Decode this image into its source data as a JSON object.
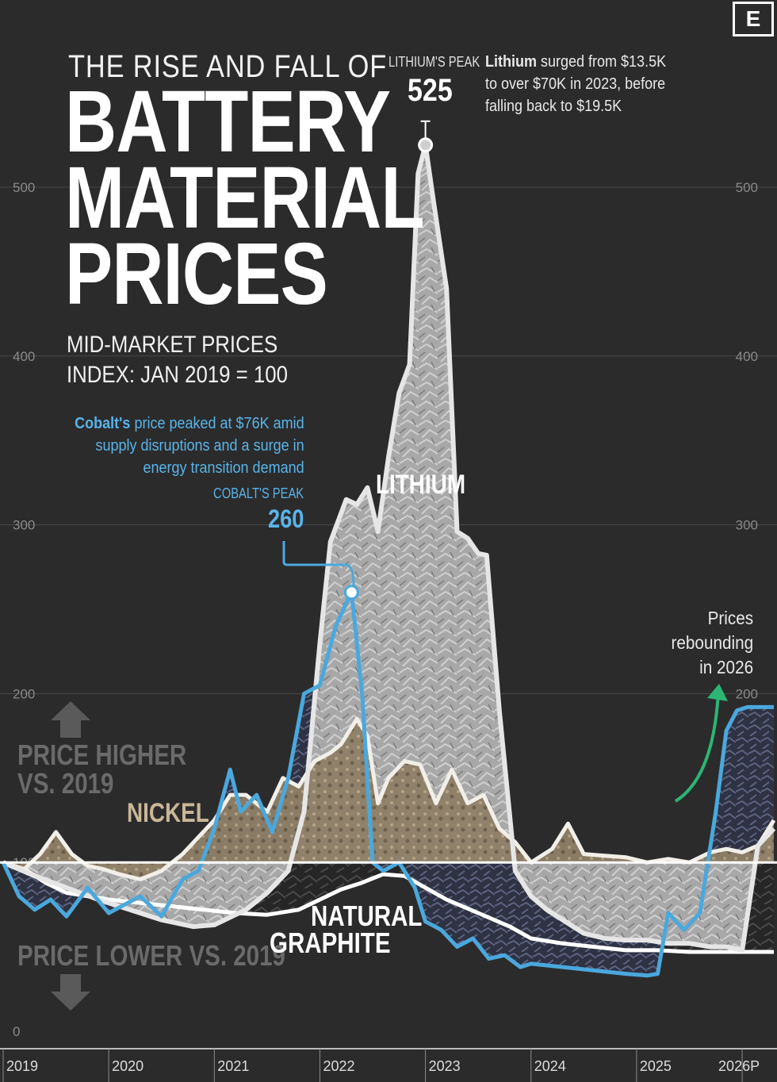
{
  "title_top": "THE RISE AND FALL OF",
  "title_lines": [
    "BATTERY",
    "MATERIAL",
    "PRICES"
  ],
  "subtitle_1": "MID-MARKET PRICES",
  "subtitle_2": "INDEX: JAN 2019 = 100",
  "logo": "E",
  "lithium_peak": {
    "label": "LITHIUM'S PEAK",
    "value": "525"
  },
  "lithium_note": {
    "bold": "Lithium",
    "text_1": " surged from $13.5K",
    "text_2": "to over $70K in 2023, before",
    "text_3": "falling back to $19.5K"
  },
  "cobalt_note": {
    "bold": "Cobalt's",
    "text_1": " price peaked at $76K amid",
    "text_2": "supply disruptions and a surge in",
    "text_3": "energy transition demand"
  },
  "cobalt_peak": {
    "label": "COBALT'S PEAK",
    "value": "260"
  },
  "rebound_note": [
    "Prices",
    "rebounding",
    "in 2026"
  ],
  "price_higher": [
    "PRICE HIGHER",
    "VS. 2019"
  ],
  "price_lower": "PRICE LOWER VS. 2019",
  "series_labels": {
    "lithium": "LITHIUM",
    "nickel": "NICKEL",
    "graphite_1": "NATURAL",
    "graphite_2": "GRAPHITE"
  },
  "colors": {
    "background": "#2b2b2c",
    "cobalt": "#4aa8dd",
    "lithium_fill": "#9e9e9e",
    "nickel_fill": "#8a7a63",
    "graphite_fill": "#3a3a3a",
    "arrow_green": "#2bb673"
  },
  "chart_data": {
    "type": "area",
    "ylim": [
      0,
      525
    ],
    "yticks": [
      0,
      100,
      200,
      300,
      400,
      500
    ],
    "ytick_labels_right": [
      "100",
      "200",
      "300",
      "400",
      "500"
    ],
    "xlim": [
      2019,
      2026.3
    ],
    "xticks": [
      2019,
      2020,
      2021,
      2022,
      2023,
      2024,
      2025,
      2026
    ],
    "xtick_labels": [
      "2019",
      "2020",
      "2021",
      "2022",
      "2023",
      "2024",
      "2025",
      "2026P"
    ],
    "series": [
      {
        "name": "LITHIUM",
        "x": [
          2019.0,
          2019.3,
          2019.6,
          2019.9,
          2020.2,
          2020.5,
          2020.8,
          2021.0,
          2021.3,
          2021.5,
          2021.7,
          2021.85,
          2022.0,
          2022.1,
          2022.25,
          2022.35,
          2022.45,
          2022.55,
          2022.65,
          2022.75,
          2022.85,
          2022.93,
          2023.0,
          2023.08,
          2023.2,
          2023.3,
          2023.4,
          2023.5,
          2023.58,
          2023.7,
          2023.85,
          2024.0,
          2024.15,
          2024.3,
          2024.5,
          2024.7,
          2024.9,
          2025.1,
          2025.3,
          2025.5,
          2025.7,
          2025.85,
          2026.0,
          2026.15,
          2026.3
        ],
        "y": [
          100,
          92,
          85,
          78,
          72,
          66,
          62,
          63,
          72,
          82,
          95,
          130,
          230,
          290,
          315,
          312,
          322,
          296,
          340,
          378,
          395,
          508,
          525,
          490,
          440,
          296,
          292,
          283,
          282,
          190,
          95,
          80,
          72,
          66,
          58,
          55,
          54,
          54,
          52,
          52,
          50,
          50,
          48,
          110,
          120
        ]
      },
      {
        "name": "COBALT",
        "x": [
          2019.0,
          2019.15,
          2019.3,
          2019.45,
          2019.6,
          2019.8,
          2020.0,
          2020.15,
          2020.3,
          2020.5,
          2020.7,
          2020.85,
          2021.0,
          2021.15,
          2021.25,
          2021.4,
          2021.55,
          2021.7,
          2021.85,
          2022.0,
          2022.15,
          2022.3,
          2022.4,
          2022.5,
          2022.6,
          2022.75,
          2022.9,
          2023.0,
          2023.15,
          2023.3,
          2023.45,
          2023.6,
          2023.75,
          2023.9,
          2024.0,
          2024.3,
          2024.6,
          2024.9,
          2025.1,
          2025.2,
          2025.3,
          2025.45,
          2025.6,
          2025.75,
          2025.85,
          2025.95,
          2026.05,
          2026.2,
          2026.3
        ],
        "y": [
          100,
          80,
          72,
          78,
          68,
          85,
          70,
          75,
          80,
          68,
          90,
          95,
          120,
          155,
          130,
          140,
          118,
          150,
          200,
          205,
          240,
          260,
          200,
          100,
          95,
          100,
          85,
          65,
          60,
          50,
          55,
          43,
          45,
          38,
          40,
          38,
          36,
          34,
          33,
          34,
          70,
          60,
          70,
          130,
          178,
          190,
          192,
          192,
          192
        ]
      },
      {
        "name": "NICKEL",
        "x": [
          2019.0,
          2019.2,
          2019.35,
          2019.5,
          2019.65,
          2019.8,
          2019.95,
          2020.1,
          2020.3,
          2020.5,
          2020.7,
          2020.85,
          2021.0,
          2021.15,
          2021.3,
          2021.5,
          2021.65,
          2021.8,
          2021.95,
          2022.1,
          2022.2,
          2022.35,
          2022.45,
          2022.55,
          2022.65,
          2022.8,
          2022.95,
          2023.1,
          2023.25,
          2023.4,
          2023.55,
          2023.7,
          2023.85,
          2024.0,
          2024.2,
          2024.35,
          2024.5,
          2024.7,
          2024.9,
          2025.1,
          2025.3,
          2025.5,
          2025.7,
          2025.85,
          2026.0,
          2026.15,
          2026.3
        ],
        "y": [
          100,
          96,
          105,
          118,
          105,
          98,
          96,
          93,
          90,
          95,
          105,
          115,
          125,
          140,
          140,
          130,
          150,
          145,
          160,
          165,
          170,
          185,
          175,
          135,
          150,
          160,
          158,
          135,
          155,
          135,
          140,
          120,
          112,
          100,
          108,
          123,
          105,
          104,
          103,
          100,
          102,
          100,
          106,
          108,
          106,
          110,
          125
        ]
      },
      {
        "name": "NATURAL GRAPHITE",
        "x": [
          2019.0,
          2019.2,
          2019.4,
          2019.6,
          2019.8,
          2020.0,
          2020.3,
          2020.6,
          2020.9,
          2021.2,
          2021.5,
          2021.8,
          2022.0,
          2022.2,
          2022.4,
          2022.6,
          2022.8,
          2023.0,
          2023.2,
          2023.5,
          2023.8,
          2024.0,
          2024.3,
          2024.6,
          2024.9,
          2025.2,
          2025.5,
          2025.8,
          2026.0,
          2026.3
        ],
        "y": [
          100,
          96,
          88,
          82,
          80,
          78,
          76,
          74,
          72,
          70,
          69,
          72,
          78,
          84,
          88,
          93,
          92,
          85,
          78,
          70,
          62,
          55,
          52,
          50,
          48,
          48,
          47,
          47,
          47,
          47
        ]
      }
    ]
  }
}
